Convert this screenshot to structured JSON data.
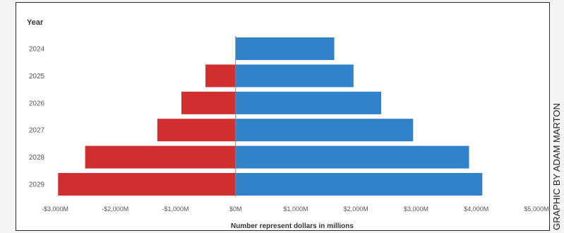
{
  "chart_data": {
    "type": "bar",
    "orientation": "horizontal",
    "y_header": "Year",
    "categories": [
      "2024",
      "2025",
      "2026",
      "2027",
      "2028",
      "2029"
    ],
    "series": [
      {
        "color": "#d12f2f",
        "values": [
          0,
          -500,
          -900,
          -1300,
          -2500,
          -2950
        ]
      },
      {
        "color": "#3182c8",
        "values": [
          1640,
          1960,
          2420,
          2950,
          3880,
          4100
        ]
      }
    ],
    "xlim": [
      -3000,
      5000
    ],
    "x_ticks": [
      -3000,
      -2000,
      -1000,
      0,
      1000,
      2000,
      3000,
      4000,
      5000
    ],
    "x_tick_labels": [
      "-$3,000M",
      "-$2,000M",
      "-$1,000M",
      "$0M",
      "$1,000M",
      "$2,000M",
      "$3,000M",
      "$4,000M",
      "$5,000M"
    ],
    "xlabel": "Number represent dollars in millions",
    "grid": false
  },
  "credit": "GRAPHIC BY ADAM MARTON"
}
